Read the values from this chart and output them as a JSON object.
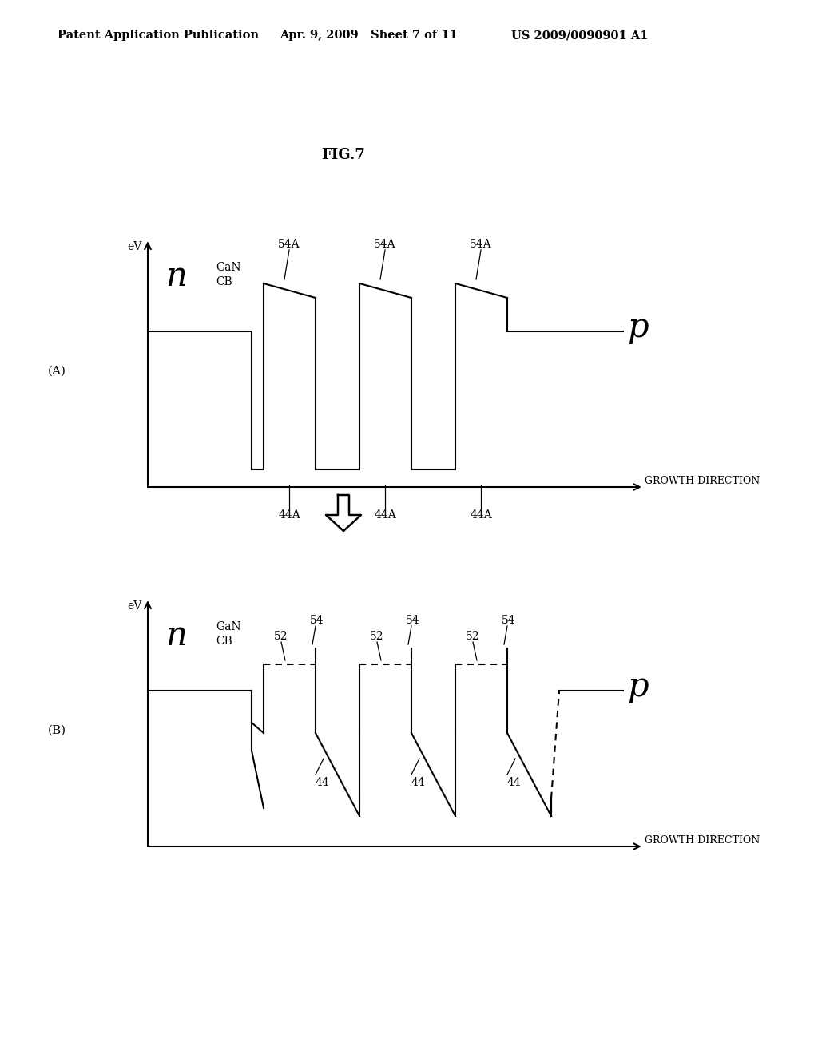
{
  "header_left": "Patent Application Publication",
  "header_mid": "Apr. 9, 2009   Sheet 7 of 11",
  "header_right": "US 2009/0090901 A1",
  "fig_title": "FIG.7",
  "background_color": "#ffffff",
  "text_color": "#000000",
  "line_color": "#000000",
  "line_width": 1.5,
  "diagA": {
    "label": "(A)",
    "ev_label": "eV",
    "n_label": "n",
    "gan_label": "GaN",
    "cb_label": "CB",
    "p_label": "p",
    "growth_dir": "GROWTH DIRECTION",
    "well_labels_top": [
      "54A",
      "54A",
      "54A"
    ],
    "well_labels_bot": [
      "44A",
      "44A",
      "44A"
    ]
  },
  "diagB": {
    "label": "(B)",
    "ev_label": "eV",
    "n_label": "n",
    "gan_label": "GaN",
    "cb_label": "CB",
    "p_label": "p",
    "growth_dir": "GROWTH DIRECTION",
    "well_labels_top": [
      "54",
      "54",
      "54"
    ],
    "barrier_labels": [
      "52",
      "52",
      "52"
    ],
    "well_labels_bot": [
      "44",
      "44",
      "44"
    ]
  },
  "arrow_label": "⇩"
}
